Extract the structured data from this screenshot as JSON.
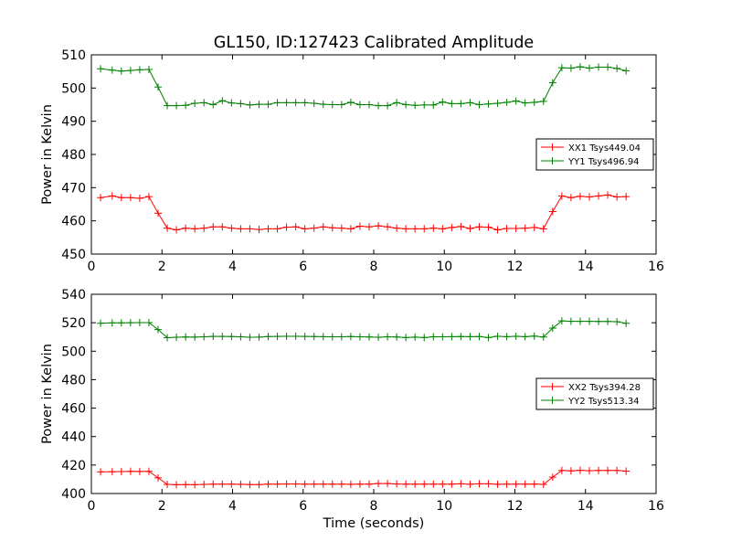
{
  "figure": {
    "title": "GL150, ID:127423 Calibrated Amplitude",
    "xlabel": "Time (seconds)"
  },
  "colors": {
    "XX": "#ff0000",
    "YY": "#008000",
    "axes": "#000000"
  },
  "chart_data": [
    {
      "type": "line",
      "ylabel": "Power in Kelvin",
      "xlim": [
        0,
        16
      ],
      "ylim": [
        450,
        510
      ],
      "xticks": [
        "0",
        "2",
        "4",
        "6",
        "8",
        "10",
        "12",
        "14",
        "16"
      ],
      "yticks": [
        "450",
        "460",
        "470",
        "480",
        "490",
        "500",
        "510"
      ],
      "legend_position": "center-right",
      "x": [
        0.26,
        0.59,
        0.85,
        1.11,
        1.37,
        1.63,
        1.89,
        2.15,
        2.41,
        2.67,
        2.93,
        3.19,
        3.45,
        3.71,
        3.97,
        4.23,
        4.49,
        4.75,
        5.01,
        5.27,
        5.53,
        5.79,
        6.05,
        6.31,
        6.57,
        6.83,
        7.09,
        7.35,
        7.61,
        7.87,
        8.13,
        8.39,
        8.65,
        8.91,
        9.17,
        9.43,
        9.69,
        9.95,
        10.21,
        10.47,
        10.73,
        10.99,
        11.25,
        11.51,
        11.77,
        12.03,
        12.29,
        12.55,
        12.81,
        13.07,
        13.33,
        13.59,
        13.85,
        14.11,
        14.37,
        14.63,
        14.89,
        15.15
      ],
      "series": [
        {
          "name": "XX1 Tsys449.04",
          "color": "#ff0000",
          "values": [
            467.0,
            467.5,
            467.0,
            467.0,
            466.8,
            467.3,
            462.3,
            457.8,
            457.3,
            457.8,
            457.6,
            457.8,
            458.2,
            458.2,
            457.8,
            457.6,
            457.6,
            457.4,
            457.6,
            457.6,
            458.1,
            458.2,
            457.6,
            457.8,
            458.2,
            457.9,
            457.8,
            457.6,
            458.4,
            458.2,
            458.5,
            458.2,
            457.8,
            457.6,
            457.6,
            457.6,
            457.8,
            457.6,
            458.0,
            458.3,
            457.7,
            458.2,
            458.1,
            457.3,
            457.7,
            457.7,
            457.8,
            458.0,
            457.6,
            462.8,
            467.5,
            467.0,
            467.4,
            467.2,
            467.5,
            467.8,
            467.2,
            467.3
          ]
        },
        {
          "name": "YY1 Tsys496.94",
          "color": "#008000",
          "values": [
            505.8,
            505.4,
            505.1,
            505.3,
            505.5,
            505.6,
            500.3,
            494.7,
            494.7,
            494.8,
            495.4,
            495.6,
            495.0,
            496.2,
            495.5,
            495.3,
            494.9,
            495.1,
            495.1,
            495.6,
            495.6,
            495.6,
            495.6,
            495.4,
            495.1,
            495.0,
            495.0,
            495.7,
            495.0,
            495.0,
            494.7,
            494.7,
            495.6,
            495.0,
            494.8,
            494.9,
            494.9,
            495.8,
            495.3,
            495.3,
            495.6,
            495.0,
            495.2,
            495.4,
            495.7,
            496.1,
            495.5,
            495.7,
            496.0,
            501.6,
            506.1,
            506.0,
            506.4,
            506.0,
            506.3,
            506.3,
            505.9,
            505.2
          ]
        }
      ]
    },
    {
      "type": "line",
      "ylabel": "Power in Kelvin",
      "xlim": [
        0,
        16
      ],
      "ylim": [
        400,
        540
      ],
      "xticks": [
        "0",
        "2",
        "4",
        "6",
        "8",
        "10",
        "12",
        "14",
        "16"
      ],
      "yticks": [
        "400",
        "420",
        "440",
        "460",
        "480",
        "500",
        "520",
        "540"
      ],
      "legend_position": "center-right",
      "x": [
        0.26,
        0.59,
        0.85,
        1.11,
        1.37,
        1.63,
        1.89,
        2.15,
        2.41,
        2.67,
        2.93,
        3.19,
        3.45,
        3.71,
        3.97,
        4.23,
        4.49,
        4.75,
        5.01,
        5.27,
        5.53,
        5.79,
        6.05,
        6.31,
        6.57,
        6.83,
        7.09,
        7.35,
        7.61,
        7.87,
        8.13,
        8.39,
        8.65,
        8.91,
        9.17,
        9.43,
        9.69,
        9.95,
        10.21,
        10.47,
        10.73,
        10.99,
        11.25,
        11.51,
        11.77,
        12.03,
        12.29,
        12.55,
        12.81,
        13.07,
        13.33,
        13.59,
        13.85,
        14.11,
        14.37,
        14.63,
        14.89,
        15.15
      ],
      "series": [
        {
          "name": "XX2 Tsys394.28",
          "color": "#ff0000",
          "values": [
            415.2,
            415.3,
            415.4,
            415.6,
            415.5,
            415.6,
            411.0,
            406.4,
            406.2,
            406.3,
            406.2,
            406.4,
            406.6,
            406.6,
            406.6,
            406.5,
            406.3,
            406.3,
            406.6,
            406.6,
            406.7,
            406.7,
            406.6,
            406.6,
            406.6,
            406.6,
            406.6,
            406.5,
            406.6,
            406.6,
            407.0,
            407.0,
            406.7,
            406.6,
            406.6,
            406.6,
            406.6,
            406.6,
            406.6,
            406.8,
            406.5,
            406.8,
            406.8,
            406.5,
            406.6,
            406.6,
            406.6,
            406.7,
            406.4,
            411.5,
            416.2,
            415.9,
            416.3,
            416.0,
            416.2,
            416.2,
            416.2,
            415.7
          ]
        },
        {
          "name": "YY2 Tsys513.34",
          "color": "#008000",
          "values": [
            519.6,
            519.9,
            519.9,
            520.0,
            520.1,
            520.1,
            515.2,
            509.5,
            509.8,
            510.0,
            509.9,
            510.1,
            510.4,
            510.4,
            510.3,
            510.1,
            509.8,
            509.9,
            510.3,
            510.4,
            510.5,
            510.5,
            510.4,
            510.3,
            510.2,
            510.1,
            510.1,
            510.3,
            510.1,
            510.0,
            509.8,
            510.1,
            510.0,
            509.6,
            509.9,
            509.6,
            510.1,
            510.1,
            510.2,
            510.3,
            510.2,
            510.3,
            509.6,
            510.5,
            510.2,
            510.5,
            510.2,
            510.6,
            510.0,
            516.2,
            521.3,
            521.0,
            521.0,
            521.0,
            520.9,
            520.9,
            520.7,
            519.6
          ]
        }
      ]
    }
  ]
}
